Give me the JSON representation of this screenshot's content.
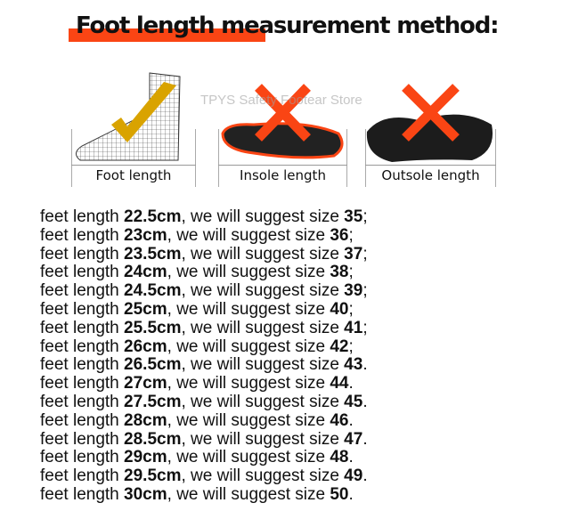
{
  "title": "Foot length measurement method:",
  "watermark": "TPYS Safety Footear Store",
  "colors": {
    "accent": "#fa4514",
    "check": "#d9a300"
  },
  "panels": [
    {
      "label": "Foot length",
      "icon": "check-icon",
      "image": "wireframe-foot"
    },
    {
      "label": "Insole length",
      "icon": "cross-icon",
      "image": "insole"
    },
    {
      "label": "Outsole length",
      "icon": "cross-icon",
      "image": "outsole"
    }
  ],
  "prefix": "feet length ",
  "middle": ", we will suggest size ",
  "rows": [
    {
      "length": "22.5cm",
      "size": "35",
      "end": ";"
    },
    {
      "length": "23cm",
      "size": "36",
      "end": ";"
    },
    {
      "length": "23.5cm",
      "size": "37",
      "end": ";"
    },
    {
      "length": "24cm",
      "size": "38",
      "end": ";"
    },
    {
      "length": "24.5cm",
      "size": "39",
      "end": ";"
    },
    {
      "length": "25cm",
      "size": "40",
      "end": ";"
    },
    {
      "length": "25.5cm",
      "size": "41",
      "end": ";"
    },
    {
      "length": "26cm",
      "size": "42",
      "end": ";"
    },
    {
      "length": "26.5cm",
      "size": "43",
      "end": "."
    },
    {
      "length": "27cm",
      "size": "44",
      "end": "."
    },
    {
      "length": "27.5cm",
      "size": "45",
      "end": "."
    },
    {
      "length": "28cm",
      "size": "46",
      "end": "."
    },
    {
      "length": "28.5cm",
      "size": "47",
      "end": "."
    },
    {
      "length": "29cm",
      "size": "48",
      "end": "."
    },
    {
      "length": "29.5cm",
      "size": "49",
      "end": "."
    },
    {
      "length": "30cm",
      "size": "50",
      "end": "."
    }
  ]
}
